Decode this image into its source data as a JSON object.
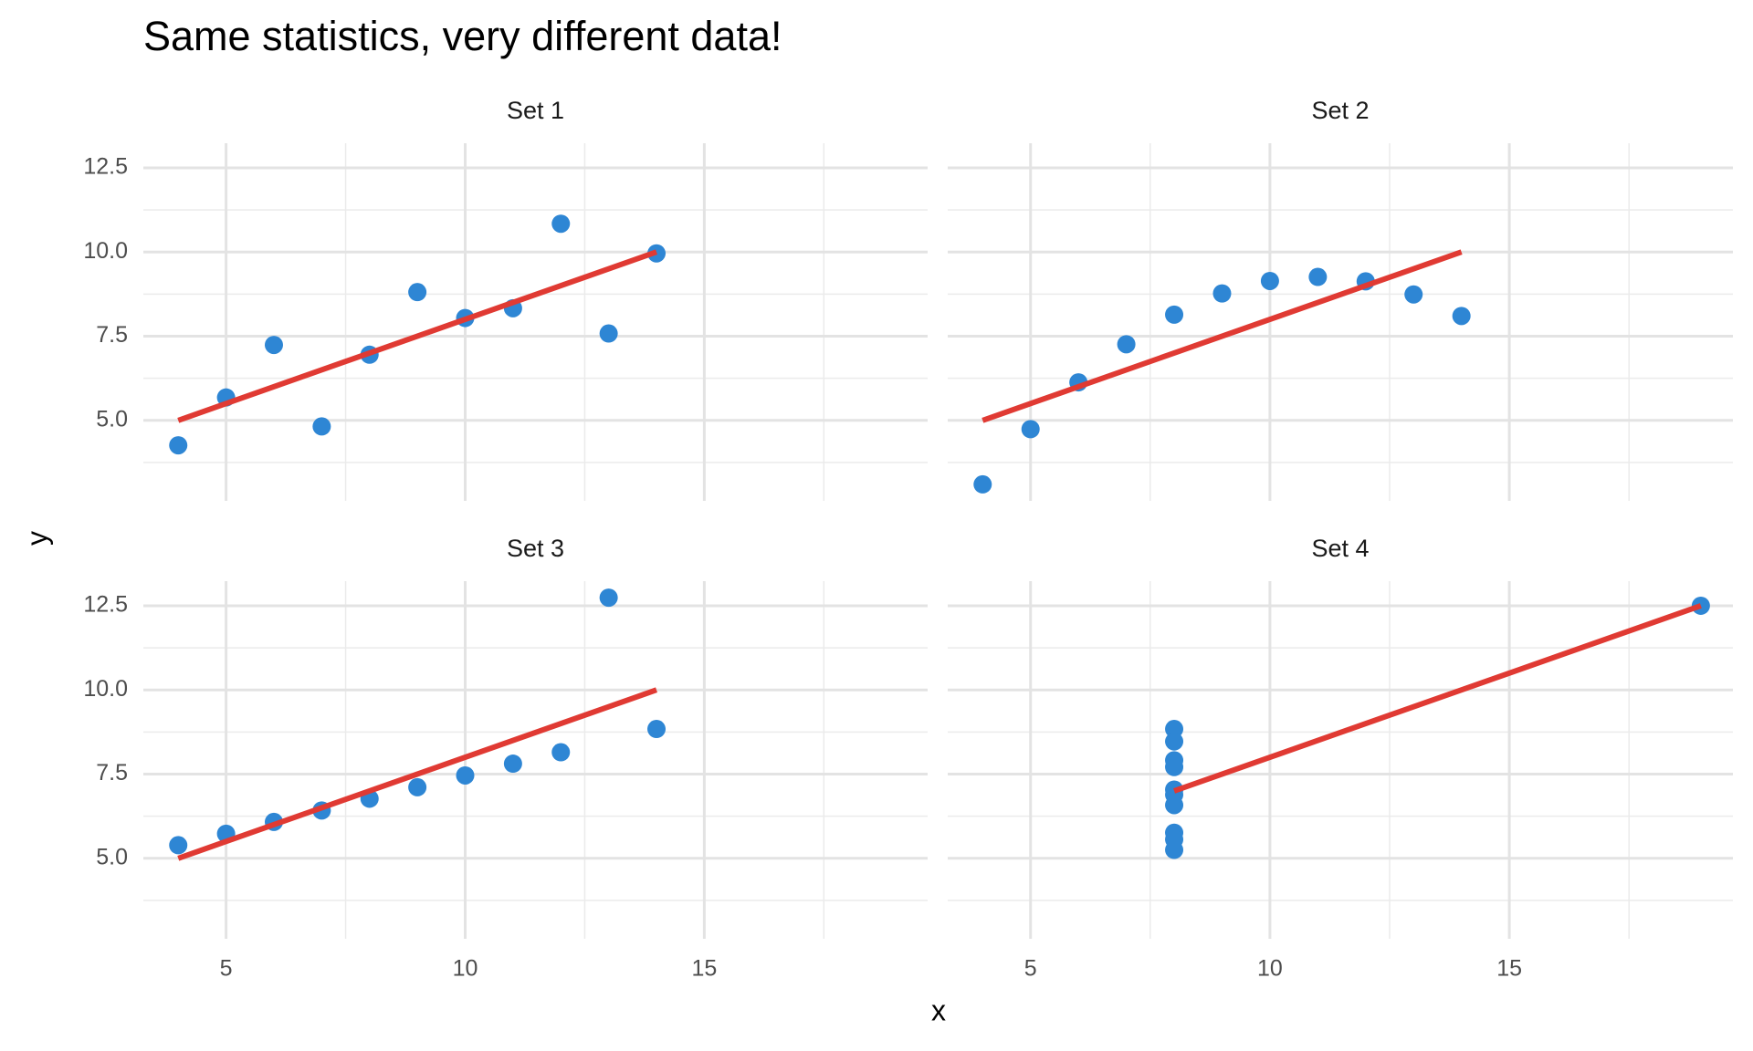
{
  "chart_data": {
    "type": "scatter",
    "title": "Same statistics, very different data!",
    "x_label": "x",
    "y_label": "y",
    "xlim": [
      3.27,
      19.67
    ],
    "ylim": [
      2.61,
      13.23
    ],
    "xticks": [
      5,
      10,
      15
    ],
    "yticks": [
      {
        "value": 5,
        "label": "5.0"
      },
      {
        "value": 7.5,
        "label": "7.5"
      },
      {
        "value": 10,
        "label": "10.0"
      },
      {
        "value": 12.5,
        "label": "12.5"
      }
    ],
    "x_minor_grid": [
      7.5,
      12.5,
      17.5
    ],
    "y_minor_grid": [
      3.75,
      6.25,
      8.75,
      11.25
    ],
    "grid": true,
    "point_color": "#2e86d4",
    "fit_color": "#e03a33",
    "panels": [
      {
        "title": "Set 1",
        "x": [
          10,
          8,
          13,
          9,
          11,
          14,
          6,
          4,
          12,
          7,
          5
        ],
        "y": [
          8.04,
          6.95,
          7.58,
          8.81,
          8.33,
          9.96,
          7.24,
          4.26,
          10.84,
          4.82,
          5.68
        ],
        "fit": {
          "x": [
            4,
            14
          ],
          "y": [
            5,
            10
          ]
        }
      },
      {
        "title": "Set 2",
        "x": [
          10,
          8,
          13,
          9,
          11,
          14,
          6,
          4,
          12,
          7,
          5
        ],
        "y": [
          9.14,
          8.14,
          8.74,
          8.77,
          9.26,
          8.1,
          6.13,
          3.1,
          9.13,
          7.26,
          4.74
        ],
        "fit": {
          "x": [
            4,
            14
          ],
          "y": [
            5,
            10
          ]
        }
      },
      {
        "title": "Set 3",
        "x": [
          10,
          8,
          13,
          9,
          11,
          14,
          6,
          4,
          12,
          7,
          5
        ],
        "y": [
          7.46,
          6.77,
          12.74,
          7.11,
          7.81,
          8.84,
          6.08,
          5.39,
          8.15,
          6.42,
          5.73
        ],
        "fit": {
          "x": [
            4,
            14
          ],
          "y": [
            5,
            10
          ]
        }
      },
      {
        "title": "Set 4",
        "x": [
          8,
          8,
          8,
          8,
          8,
          8,
          8,
          19,
          8,
          8,
          8
        ],
        "y": [
          6.58,
          5.76,
          7.71,
          8.84,
          8.47,
          7.04,
          5.25,
          12.5,
          5.56,
          7.91,
          6.89
        ],
        "fit": {
          "x": [
            8,
            19
          ],
          "y": [
            7,
            12.5
          ]
        }
      }
    ]
  }
}
